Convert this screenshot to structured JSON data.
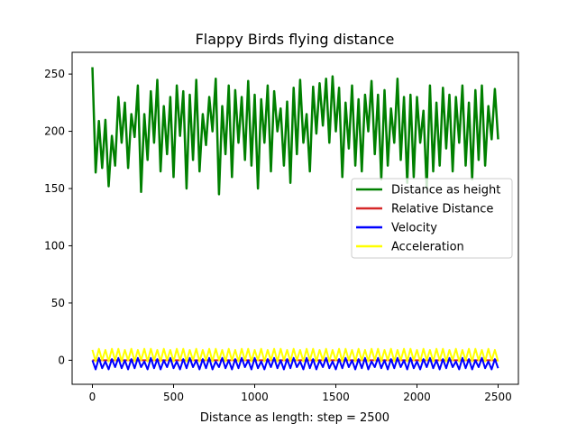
{
  "chart_data": {
    "type": "line",
    "title": "Flappy Birds flying distance",
    "xlabel": "Distance as length: step = 2500",
    "ylabel": "",
    "xlim": [
      -125,
      2625
    ],
    "ylim": [
      -21,
      269
    ],
    "xticks": [
      0,
      500,
      1000,
      1500,
      2000,
      2500
    ],
    "yticks": [
      0,
      50,
      100,
      150,
      200,
      250
    ],
    "grid": false,
    "legend_position": "center right",
    "x": [
      0,
      20,
      40,
      60,
      80,
      100,
      120,
      140,
      160,
      180,
      200,
      220,
      240,
      260,
      280,
      300,
      320,
      340,
      360,
      380,
      400,
      420,
      440,
      460,
      480,
      500,
      520,
      540,
      560,
      580,
      600,
      620,
      640,
      660,
      680,
      700,
      720,
      740,
      760,
      780,
      800,
      820,
      840,
      860,
      880,
      900,
      920,
      940,
      960,
      980,
      1000,
      1020,
      1040,
      1060,
      1080,
      1100,
      1120,
      1140,
      1160,
      1180,
      1200,
      1220,
      1240,
      1260,
      1280,
      1300,
      1320,
      1340,
      1360,
      1380,
      1400,
      1420,
      1440,
      1460,
      1480,
      1500,
      1520,
      1540,
      1560,
      1580,
      1600,
      1620,
      1640,
      1660,
      1680,
      1700,
      1720,
      1740,
      1760,
      1780,
      1800,
      1820,
      1840,
      1860,
      1880,
      1900,
      1920,
      1940,
      1960,
      1980,
      2000,
      2020,
      2040,
      2060,
      2080,
      2100,
      2120,
      2140,
      2160,
      2180,
      2200,
      2220,
      2240,
      2260,
      2280,
      2300,
      2320,
      2340,
      2360,
      2380,
      2400,
      2420,
      2440,
      2460,
      2480,
      2500
    ],
    "series": [
      {
        "name": "Distance as height",
        "color": "#008000",
        "values": [
          256,
          164,
          209,
          168,
          210,
          152,
          196,
          170,
          230,
          190,
          225,
          168,
          215,
          195,
          240,
          147,
          215,
          175,
          235,
          190,
          245,
          165,
          222,
          180,
          230,
          160,
          240,
          196,
          235,
          150,
          232,
          175,
          245,
          165,
          215,
          188,
          230,
          200,
          246,
          145,
          222,
          180,
          240,
          160,
          236,
          190,
          230,
          175,
          244,
          170,
          232,
          150,
          228,
          190,
          240,
          165,
          235,
          200,
          220,
          170,
          226,
          155,
          238,
          180,
          245,
          190,
          215,
          165,
          239,
          198,
          242,
          205,
          246,
          190,
          248,
          200,
          238,
          160,
          225,
          185,
          240,
          170,
          228,
          165,
          232,
          200,
          244,
          180,
          232,
          158,
          236,
          170,
          220,
          190,
          246,
          175,
          230,
          155,
          232,
          160,
          230,
          190,
          218,
          150,
          240,
          165,
          225,
          170,
          238,
          185,
          232,
          165,
          230,
          190,
          240,
          170,
          225,
          158,
          236,
          175,
          240,
          170,
          222,
          193,
          237,
          193
        ]
      },
      {
        "name": "Relative Distance",
        "color": "#d62728",
        "values": [
          0,
          0,
          0,
          0,
          0,
          0,
          0,
          0,
          0,
          0,
          0,
          0,
          0,
          0,
          0,
          0,
          0,
          0,
          0,
          0,
          0,
          0,
          0,
          0,
          0,
          0,
          0,
          0,
          0,
          0,
          0,
          0,
          0,
          0,
          0,
          0,
          0,
          0,
          0,
          0,
          0,
          0,
          0,
          0,
          0,
          0,
          0,
          0,
          0,
          0,
          0,
          0,
          0,
          0,
          0,
          0,
          0,
          0,
          0,
          0,
          0,
          0,
          0,
          0,
          0,
          0,
          0,
          0,
          0,
          0,
          0,
          0,
          0,
          0,
          0,
          0,
          0,
          0,
          0,
          0,
          0,
          0,
          0,
          0,
          0,
          0,
          0,
          0,
          0,
          0,
          0,
          0,
          0,
          0,
          0,
          0,
          0,
          0,
          0,
          0,
          0,
          0,
          0,
          0,
          0,
          0,
          0,
          0,
          0,
          0,
          0,
          0,
          0,
          0,
          0,
          0,
          0,
          0,
          0,
          0,
          0,
          0,
          0,
          0,
          0,
          0
        ]
      },
      {
        "name": "Velocity",
        "color": "#0000ff",
        "values": [
          0,
          -8,
          2,
          -7,
          -1,
          -8,
          1,
          -6,
          2,
          -7,
          0,
          -8,
          1,
          -7,
          2,
          -6,
          -1,
          -8,
          2,
          -7,
          1,
          -8,
          0,
          -6,
          2,
          -7,
          -1,
          -8,
          1,
          -7,
          2,
          -6,
          0,
          -8,
          1,
          -7,
          2,
          -8,
          -1,
          -6,
          2,
          -7,
          0,
          -8,
          1,
          -7,
          2,
          -6,
          0,
          -8,
          2,
          -7,
          -1,
          -8,
          1,
          -6,
          2,
          -7,
          0,
          -8,
          1,
          -7,
          2,
          -6,
          -1,
          -8,
          2,
          -7,
          1,
          -8,
          0,
          -6,
          2,
          -7,
          -1,
          -8,
          1,
          -7,
          2,
          -6,
          0,
          -8,
          1,
          -7,
          2,
          -8,
          -1,
          -6,
          2,
          -7,
          0,
          -8,
          1,
          -7,
          2,
          -6,
          0,
          -8,
          2,
          -7,
          -1,
          -8,
          1,
          -6,
          2,
          -7,
          0,
          -8,
          1,
          -7,
          2,
          -6,
          -1,
          -8,
          2,
          -7,
          1,
          -8,
          0,
          -6,
          2,
          -7,
          -1,
          -8,
          1,
          -7
        ]
      },
      {
        "name": "Acceleration",
        "color": "#ffff00",
        "values": [
          9,
          -1,
          10,
          0,
          9,
          -1,
          10,
          0,
          10,
          -1,
          9,
          0,
          10,
          -1,
          9,
          0,
          10,
          -1,
          10,
          0,
          9,
          -1,
          10,
          0,
          9,
          -1,
          10,
          0,
          10,
          -1,
          9,
          0,
          10,
          -1,
          9,
          0,
          10,
          -1,
          10,
          0,
          9,
          -1,
          10,
          0,
          9,
          -1,
          10,
          0,
          10,
          -1,
          9,
          0,
          10,
          -1,
          9,
          0,
          10,
          -1,
          10,
          0,
          9,
          -1,
          10,
          0,
          9,
          -1,
          10,
          0,
          10,
          -1,
          9,
          0,
          10,
          -1,
          9,
          0,
          10,
          -1,
          10,
          0,
          9,
          -1,
          10,
          0,
          9,
          -1,
          10,
          0,
          10,
          -1,
          9,
          0,
          10,
          -1,
          9,
          0,
          10,
          -1,
          10,
          0,
          9,
          -1,
          10,
          0,
          9,
          -1,
          10,
          0,
          10,
          -1,
          9,
          0,
          10,
          -1,
          9,
          0,
          10,
          -1,
          10,
          0,
          9,
          -1,
          10,
          0,
          9,
          -1
        ]
      }
    ]
  }
}
